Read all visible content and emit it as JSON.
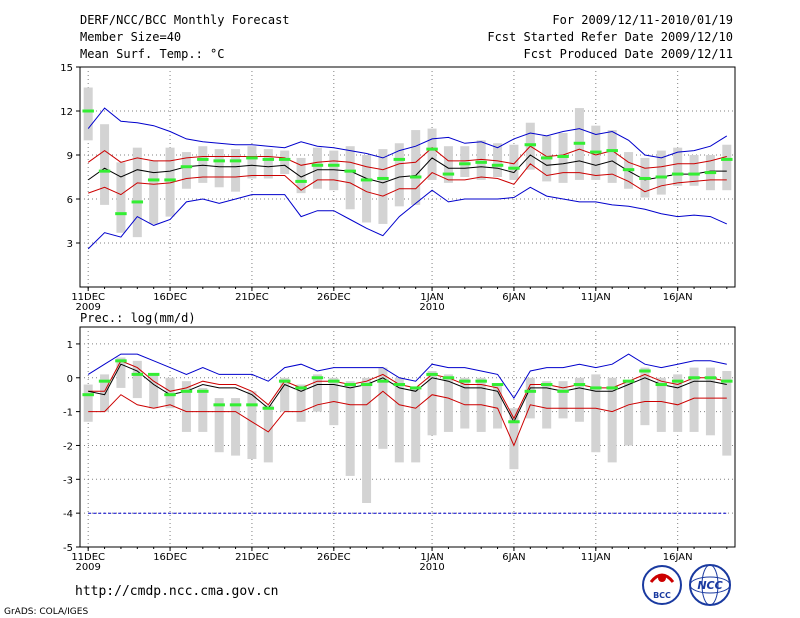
{
  "header": {
    "title": "DERF/NCC/BCC Monthly Forecast",
    "member_size": "Member Size=40",
    "variable": "Mean Surf. Temp.: °C",
    "period": "For 2009/12/11-2010/01/19",
    "fcst_started": "Fcst Started Refer Date 2009/12/10",
    "fcst_produced": "Fcst Produced Date 2009/12/11"
  },
  "footer": {
    "url": "http://cmdp.ncc.cma.gov.cn",
    "grads": "GrADS: COLA/IGES",
    "logo_bcc": "BCC",
    "logo_ncc": "NCC"
  },
  "colors": {
    "max": "#0000cc",
    "upper": "#cc0000",
    "mean": "#000000",
    "median_marker": "#33ee33",
    "box": "#d3d3d3",
    "grid": "#808080"
  },
  "chart_data": [
    {
      "type": "box-ensemble",
      "title": "Mean Surf. Temp.: °C",
      "x_labels": [
        {
          "day": 0,
          "label": "11DEC",
          "sub": "2009"
        },
        {
          "day": 5,
          "label": "16DEC"
        },
        {
          "day": 10,
          "label": "21DEC"
        },
        {
          "day": 15,
          "label": "26DEC"
        },
        {
          "day": 21,
          "label": "1JAN",
          "sub": "2010"
        },
        {
          "day": 26,
          "label": "6JAN"
        },
        {
          "day": 31,
          "label": "11JAN"
        },
        {
          "day": 36,
          "label": "16JAN"
        }
      ],
      "ylim": [
        0,
        15
      ],
      "yticks": [
        3,
        6,
        9,
        12,
        15
      ],
      "n_days": 40,
      "max": [
        10.8,
        12.2,
        11.3,
        11.2,
        11.0,
        10.6,
        10.1,
        9.9,
        9.8,
        9.7,
        9.7,
        9.6,
        9.5,
        9.9,
        9.6,
        9.5,
        9.3,
        9.1,
        8.8,
        9.3,
        9.6,
        10.1,
        10.2,
        9.8,
        9.9,
        9.5,
        10.1,
        10.5,
        10.3,
        10.6,
        10.8,
        10.4,
        10.6,
        10.0,
        9.0,
        8.8,
        9.2,
        9.3,
        9.6,
        10.3
      ],
      "upper": [
        8.5,
        9.3,
        8.5,
        8.8,
        8.6,
        8.6,
        8.8,
        8.9,
        8.9,
        8.9,
        8.9,
        8.9,
        8.8,
        8.3,
        8.5,
        8.6,
        8.5,
        8.2,
        8.0,
        8.4,
        8.5,
        9.5,
        8.6,
        8.6,
        8.7,
        8.6,
        8.4,
        9.6,
        8.9,
        9.0,
        9.4,
        9.0,
        9.3,
        8.5,
        8.1,
        8.2,
        8.4,
        8.4,
        8.6,
        8.9
      ],
      "mean": [
        7.3,
        8.1,
        7.5,
        8.0,
        7.8,
        7.9,
        8.2,
        8.3,
        8.2,
        8.2,
        8.3,
        8.2,
        8.3,
        7.5,
        8.0,
        8.0,
        7.9,
        7.4,
        7.1,
        7.5,
        7.6,
        8.8,
        8.1,
        8.1,
        8.2,
        8.1,
        7.8,
        9.0,
        8.3,
        8.4,
        8.6,
        8.3,
        8.6,
        7.9,
        7.3,
        7.5,
        7.7,
        7.7,
        7.9,
        7.9
      ],
      "lower": [
        6.4,
        6.8,
        6.3,
        7.1,
        7.0,
        7.1,
        7.4,
        7.5,
        7.5,
        7.5,
        7.6,
        7.6,
        7.6,
        6.6,
        7.3,
        7.3,
        7.1,
        6.5,
        6.2,
        6.7,
        6.7,
        7.8,
        7.3,
        7.3,
        7.5,
        7.4,
        7.0,
        8.4,
        7.6,
        7.8,
        7.8,
        7.6,
        7.7,
        7.2,
        6.5,
        6.9,
        7.1,
        7.2,
        7.3,
        7.3
      ],
      "min": [
        2.6,
        3.7,
        3.4,
        4.8,
        4.2,
        4.6,
        5.8,
        6.0,
        5.7,
        6.0,
        6.3,
        6.3,
        6.3,
        4.8,
        5.2,
        5.2,
        4.6,
        4.0,
        3.5,
        4.8,
        5.7,
        6.6,
        5.8,
        6.0,
        6.0,
        6.0,
        6.1,
        6.8,
        6.2,
        6.0,
        5.8,
        5.8,
        5.6,
        5.5,
        5.3,
        5.0,
        4.8,
        4.9,
        4.8,
        4.3
      ],
      "box_low": [
        10.0,
        5.6,
        3.7,
        3.4,
        4.3,
        4.8,
        6.7,
        7.1,
        6.8,
        6.5,
        7.4,
        7.4,
        7.7,
        6.4,
        6.7,
        6.6,
        5.3,
        4.4,
        4.3,
        5.5,
        5.6,
        7.3,
        7.1,
        7.5,
        7.3,
        7.5,
        7.3,
        8.0,
        7.2,
        7.1,
        7.3,
        7.3,
        7.1,
        6.7,
        6.1,
        6.3,
        6.9,
        6.9,
        6.6,
        6.6
      ],
      "box_high": [
        13.6,
        11.1,
        8.5,
        9.5,
        8.6,
        9.5,
        9.2,
        9.6,
        9.4,
        9.4,
        9.6,
        9.4,
        9.3,
        8.8,
        9.5,
        9.3,
        9.6,
        9.0,
        9.4,
        9.8,
        10.7,
        10.8,
        9.6,
        9.6,
        10.0,
        9.8,
        9.7,
        11.2,
        10.3,
        10.5,
        12.2,
        11.0,
        10.7,
        9.2,
        8.8,
        9.3,
        9.5,
        9.0,
        9.0,
        9.7
      ],
      "median": [
        12.0,
        7.9,
        5.0,
        5.8,
        7.3,
        7.3,
        8.2,
        8.7,
        8.6,
        8.6,
        8.8,
        8.7,
        8.7,
        7.2,
        8.3,
        8.3,
        7.9,
        7.3,
        7.4,
        8.7,
        7.5,
        9.4,
        7.7,
        8.4,
        8.5,
        8.3,
        8.1,
        9.7,
        8.8,
        8.9,
        9.8,
        9.2,
        9.3,
        8.0,
        7.4,
        7.5,
        7.7,
        7.7,
        7.8,
        8.7
      ]
    },
    {
      "type": "box-ensemble",
      "title": "Prec.: log(mm/d)",
      "ylim": [
        -5,
        1.5
      ],
      "yticks": [
        -5,
        -4,
        -3,
        -2,
        -1,
        0,
        1
      ],
      "n_days": 40,
      "max": [
        0.1,
        0.4,
        0.7,
        0.7,
        0.5,
        0.3,
        0.1,
        0.3,
        0.1,
        0.1,
        0.1,
        -0.1,
        0.3,
        0.4,
        0.2,
        0.3,
        0.3,
        0.3,
        0.3,
        0.0,
        -0.1,
        0.4,
        0.3,
        0.3,
        0.2,
        0.1,
        -0.6,
        0.2,
        0.3,
        0.3,
        0.4,
        0.3,
        0.4,
        0.7,
        0.4,
        0.3,
        0.4,
        0.5,
        0.5,
        0.4
      ],
      "upper": [
        -0.4,
        -0.4,
        0.5,
        0.3,
        -0.1,
        -0.4,
        -0.3,
        -0.1,
        -0.2,
        -0.2,
        -0.4,
        -0.8,
        -0.1,
        -0.3,
        -0.1,
        -0.1,
        -0.2,
        -0.1,
        0.1,
        -0.2,
        -0.3,
        0.1,
        0.0,
        -0.2,
        -0.2,
        -0.3,
        -1.2,
        -0.2,
        -0.2,
        -0.3,
        -0.2,
        -0.3,
        -0.3,
        -0.1,
        0.1,
        -0.1,
        -0.2,
        0.0,
        0.0,
        -0.1
      ],
      "mean": [
        -0.4,
        -0.5,
        0.4,
        0.2,
        -0.2,
        -0.5,
        -0.4,
        -0.2,
        -0.3,
        -0.3,
        -0.5,
        -0.9,
        -0.2,
        -0.4,
        -0.2,
        -0.2,
        -0.3,
        -0.2,
        0.0,
        -0.3,
        -0.4,
        0.0,
        -0.1,
        -0.3,
        -0.3,
        -0.4,
        -1.3,
        -0.3,
        -0.3,
        -0.4,
        -0.3,
        -0.4,
        -0.4,
        -0.2,
        0.0,
        -0.2,
        -0.3,
        -0.1,
        -0.1,
        -0.2
      ],
      "lower": [
        -1.0,
        -1.0,
        -0.5,
        -0.8,
        -0.9,
        -0.8,
        -1.0,
        -1.0,
        -1.0,
        -1.0,
        -1.3,
        -1.6,
        -1.0,
        -1.0,
        -0.8,
        -0.7,
        -0.8,
        -0.8,
        -0.4,
        -0.8,
        -0.9,
        -0.5,
        -0.6,
        -0.8,
        -0.8,
        -0.9,
        -2.0,
        -0.8,
        -0.9,
        -0.9,
        -0.9,
        -0.9,
        -1.0,
        -0.8,
        -0.7,
        -0.7,
        -0.8,
        -0.6,
        -0.6,
        -0.6
      ],
      "min": [
        -4,
        -4,
        -4,
        -4,
        -4,
        -4,
        -4,
        -4,
        -4,
        -4,
        -4,
        -4,
        -4,
        -4,
        -4,
        -4,
        -4,
        -4,
        -4,
        -4,
        -4,
        -4,
        -4,
        -4,
        -4,
        -4,
        -4,
        -4,
        -4,
        -4,
        -4,
        -4,
        -4,
        -4,
        -4,
        -4,
        -4,
        -4,
        -4,
        -4
      ],
      "box_low": [
        -1.3,
        -1.0,
        -0.3,
        -0.6,
        -0.9,
        -0.9,
        -1.6,
        -1.6,
        -2.2,
        -2.3,
        -2.4,
        -2.5,
        -1.0,
        -1.3,
        -1.0,
        -1.4,
        -2.9,
        -3.7,
        -2.1,
        -2.5,
        -2.5,
        -1.7,
        -1.6,
        -1.5,
        -1.6,
        -1.5,
        -2.7,
        -1.2,
        -1.5,
        -1.2,
        -1.3,
        -2.2,
        -2.5,
        -2.0,
        -1.4,
        -1.6,
        -1.6,
        -1.6,
        -1.7,
        -2.3
      ],
      "box_high": [
        -0.2,
        0.1,
        0.6,
        0.5,
        0.1,
        0.0,
        -0.1,
        -0.3,
        -0.6,
        -0.6,
        -0.4,
        -0.8,
        0.0,
        -0.2,
        0.1,
        0.0,
        -0.1,
        0.0,
        0.3,
        0.0,
        -0.3,
        0.2,
        0.1,
        0.0,
        0.0,
        -0.2,
        -0.9,
        0.0,
        -0.1,
        -0.1,
        0.0,
        0.1,
        0.0,
        -0.1,
        0.3,
        0.0,
        0.1,
        0.3,
        0.3,
        0.2
      ],
      "median": [
        -0.5,
        -0.1,
        0.5,
        0.1,
        0.1,
        -0.5,
        -0.4,
        -0.4,
        -0.8,
        -0.8,
        -0.8,
        -0.9,
        -0.1,
        -0.3,
        0.0,
        -0.1,
        -0.2,
        -0.2,
        -0.1,
        -0.2,
        -0.3,
        0.1,
        0.0,
        -0.1,
        -0.1,
        -0.2,
        -1.3,
        -0.4,
        -0.2,
        -0.4,
        -0.2,
        -0.3,
        -0.3,
        -0.1,
        0.2,
        -0.2,
        -0.1,
        0.0,
        0.0,
        -0.1
      ]
    }
  ]
}
